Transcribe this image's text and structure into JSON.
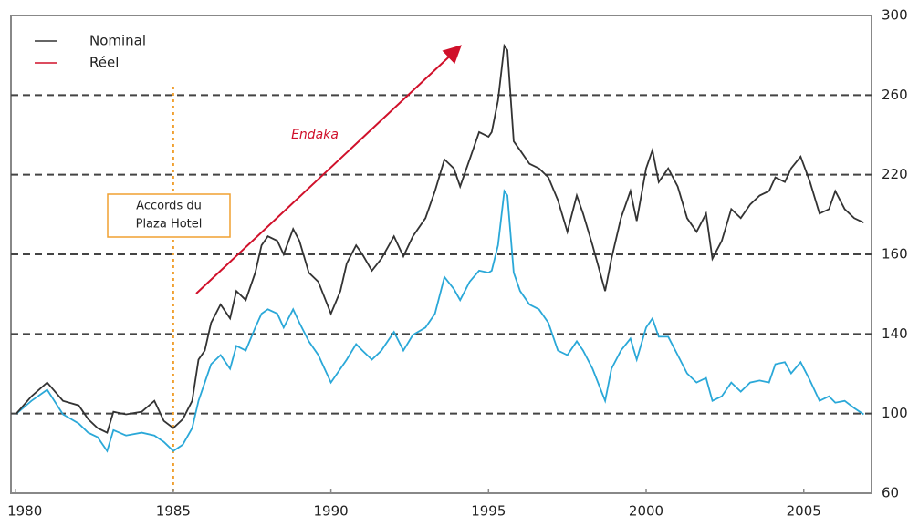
{
  "chart_data": {
    "type": "line",
    "yscale": "piecewise",
    "grid": true,
    "legend": "top-left",
    "xlim": [
      1979.85,
      2007.15
    ],
    "xticks": [
      1980,
      1985,
      1990,
      1995,
      2000,
      2005
    ],
    "ylim": [
      60,
      300
    ],
    "yticks": [
      60,
      100,
      140,
      160,
      220,
      260,
      300
    ],
    "x": [
      1980.0,
      1980.5,
      1981.0,
      1981.5,
      1982.0,
      1982.3,
      1982.6,
      1982.9,
      1983.1,
      1983.5,
      1984.0,
      1984.4,
      1984.7,
      1985.0,
      1985.3,
      1985.6,
      1985.8,
      1986.0,
      1986.2,
      1986.5,
      1986.8,
      1987.0,
      1987.3,
      1987.6,
      1987.8,
      1988.0,
      1988.3,
      1988.5,
      1988.8,
      1989.0,
      1989.3,
      1989.6,
      1990.0,
      1990.3,
      1990.5,
      1990.8,
      1991.0,
      1991.3,
      1991.6,
      1992.0,
      1992.3,
      1992.6,
      1993.0,
      1993.3,
      1993.6,
      1993.9,
      1994.1,
      1994.4,
      1994.7,
      1995.0,
      1995.1,
      1995.3,
      1995.5,
      1995.6,
      1995.8,
      1996.0,
      1996.3,
      1996.6,
      1996.9,
      1997.2,
      1997.5,
      1997.8,
      1998.0,
      1998.3,
      1998.7,
      1998.9,
      1999.2,
      1999.5,
      1999.7,
      2000.0,
      2000.2,
      2000.4,
      2000.7,
      2001.0,
      2001.3,
      2001.6,
      2001.9,
      2002.1,
      2002.4,
      2002.7,
      2003.0,
      2003.3,
      2003.6,
      2003.9,
      2004.1,
      2004.4,
      2004.6,
      2004.9,
      2005.2,
      2005.5,
      2005.8,
      2006.0,
      2006.3,
      2006.6,
      2006.9
    ],
    "series": [
      {
        "name": "Nominal",
        "color": "#333333",
        "values": [
          99.6,
          108.7,
          115.6,
          106.4,
          104.1,
          97.2,
          92.7,
          90.4,
          100.9,
          99.6,
          100.9,
          106.4,
          96.3,
          92.7,
          97.2,
          106.4,
          127.1,
          131.7,
          142.8,
          147.4,
          143.9,
          150.8,
          148.5,
          155.4,
          166.8,
          173.6,
          170.2,
          160,
          179.1,
          170.2,
          155.4,
          153.1,
          145.1,
          150.8,
          157.7,
          166.8,
          160,
          155.9,
          158.9,
          173.6,
          159.5,
          173.6,
          187.3,
          207.7,
          227.7,
          223.2,
          211.1,
          227.7,
          241.4,
          239.1,
          241.4,
          257.3,
          284.8,
          282.5,
          236.8,
          232.3,
          225.5,
          223.2,
          218,
          200.9,
          177,
          204.3,
          190.7,
          166.8,
          150.8,
          158.9,
          187.3,
          207.7,
          185.2,
          223.2,
          232.3,
          214.5,
          223.2,
          211.1,
          187.3,
          177,
          190.7,
          158.9,
          170.2,
          194.1,
          187.3,
          197.5,
          204.3,
          207.7,
          218,
          214.5,
          223.2,
          229.1,
          214.5,
          190.7,
          194.1,
          207.7,
          194.1,
          187.3,
          183.9
        ]
      },
      {
        "name": "Réel",
        "color": "#2aa8d8",
        "values": [
          99.6,
          106.4,
          112,
          99.6,
          95,
          90.4,
          88.1,
          81.2,
          91.7,
          89,
          90.4,
          89,
          85.8,
          81.2,
          84.4,
          92.7,
          106.4,
          115.6,
          124.8,
          129.4,
          122.5,
          134,
          131.7,
          141.6,
          145.1,
          146.2,
          145.1,
          141.6,
          146.2,
          142.8,
          136.3,
          129.4,
          115.6,
          122.5,
          127.1,
          134.9,
          131.7,
          127.1,
          131.7,
          140.5,
          131.7,
          139.5,
          141.6,
          145.1,
          154.3,
          151.3,
          148.5,
          153.1,
          155.9,
          155.4,
          155.9,
          166.8,
          207.7,
          204.3,
          155.4,
          150.8,
          147.4,
          146.2,
          142.8,
          131.7,
          129.4,
          136.3,
          131.7,
          122.5,
          106.4,
          122.5,
          131.7,
          137.7,
          127.1,
          141.6,
          143.9,
          138.6,
          138.6,
          129.4,
          120.2,
          115.6,
          117.9,
          106.4,
          108.7,
          115.6,
          111,
          115.6,
          116.6,
          115.6,
          124.8,
          125.8,
          120.2,
          125.8,
          116.6,
          106.4,
          108.7,
          105.5,
          106.4,
          102.8,
          99.6
        ]
      }
    ],
    "vline": {
      "x": 1985,
      "color": "#f0a030",
      "label": [
        "Accords du",
        "Plaza Hotel"
      ]
    },
    "arrow_label": "Endaka"
  }
}
